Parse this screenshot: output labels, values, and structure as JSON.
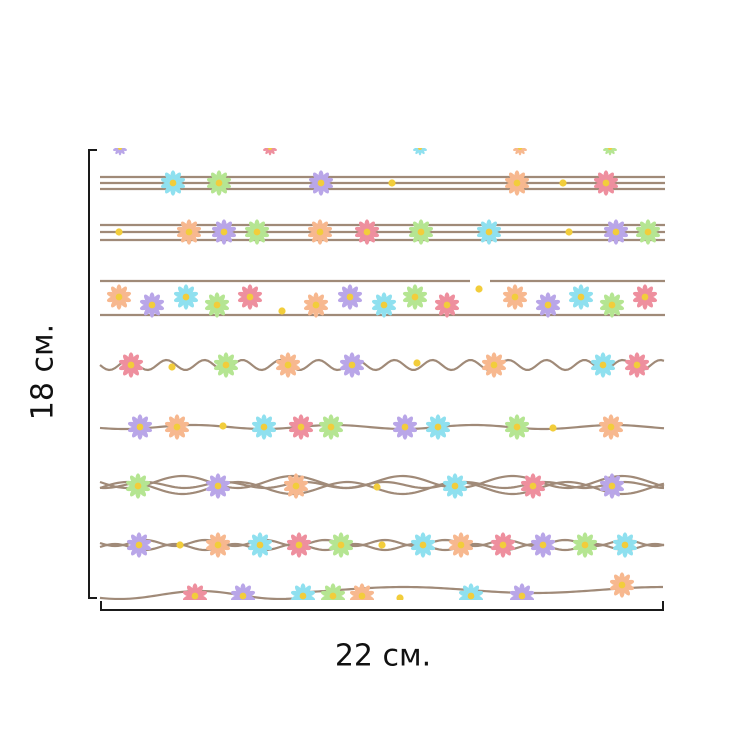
{
  "dimensions": {
    "height_label": "18 см.",
    "width_label": "22 см."
  },
  "colors": {
    "background": "#ffffff",
    "stem": "#a08a78",
    "bracket": "#1a1a1a",
    "flower_center": "#f2cd3b",
    "flower_petals": [
      "#b9a6e8",
      "#8fe0ef",
      "#f7b88f",
      "#ee8f9e",
      "#b5e592"
    ]
  },
  "pattern": {
    "rows": [
      {
        "style": "triple-straight"
      },
      {
        "style": "triple-straight"
      },
      {
        "style": "double-straight"
      },
      {
        "style": "wavy"
      },
      {
        "style": "single-straight"
      },
      {
        "style": "braided"
      },
      {
        "style": "braided-single"
      },
      {
        "style": "wavy-loose"
      }
    ]
  }
}
